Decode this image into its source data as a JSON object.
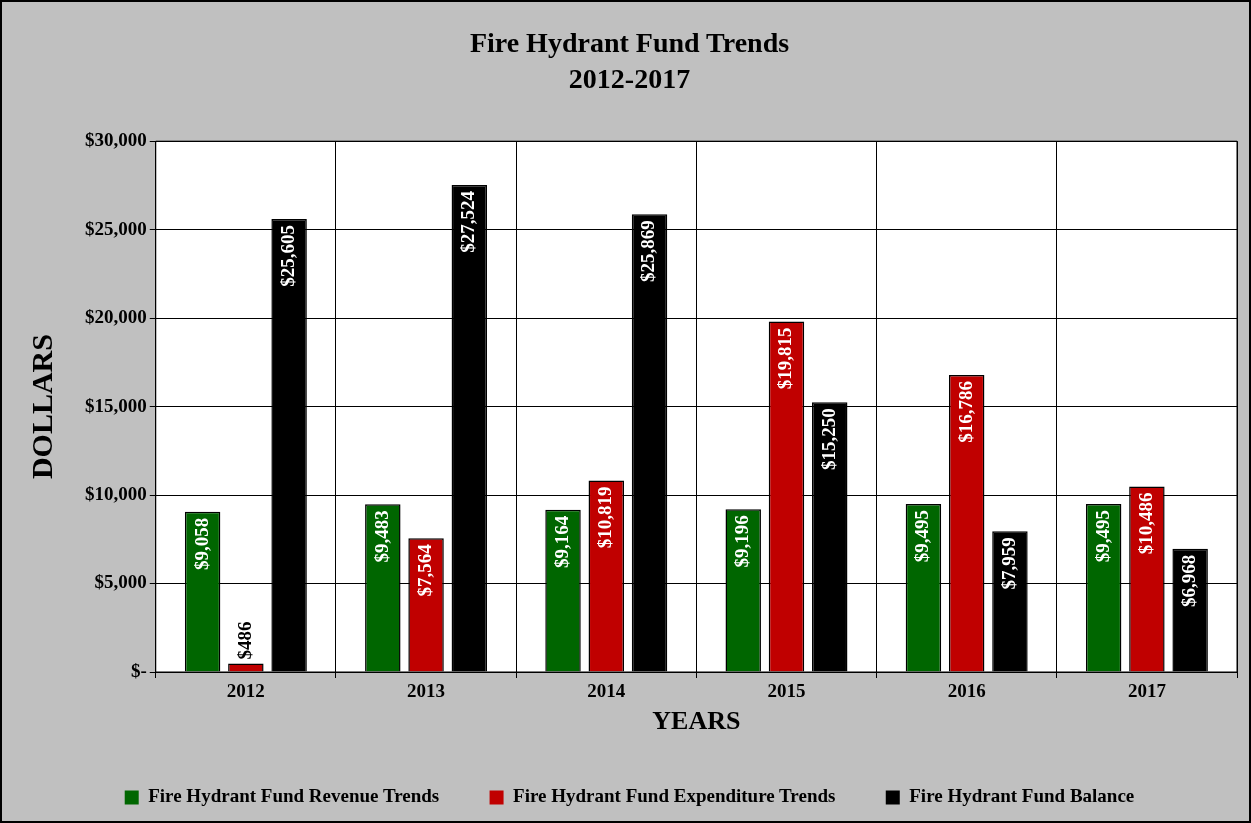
{
  "chart_data": {
    "type": "bar",
    "title": "Fire Hydrant Fund Trends",
    "subtitle": "2012-2017",
    "xlabel": "YEARS",
    "ylabel": "DOLLARS",
    "categories": [
      "2012",
      "2013",
      "2014",
      "2015",
      "2016",
      "2017"
    ],
    "series": [
      {
        "name": "Fire Hydrant Fund Revenue Trends",
        "color": "#006600",
        "values": [
          9058,
          9483,
          9164,
          9196,
          9495,
          9495
        ],
        "value_labels": [
          "$9,058",
          "$9,483",
          "$9,164",
          "$9,196",
          "$9,495",
          "$9,495"
        ]
      },
      {
        "name": "Fire Hydrant Fund Expenditure Trends",
        "color": "#c00000",
        "values": [
          486,
          7564,
          10819,
          19815,
          16786,
          10486
        ],
        "value_labels": [
          "$486",
          "$7,564",
          "$10,819",
          "$19,815",
          "$16,786",
          "$10,486"
        ]
      },
      {
        "name": "Fire Hydrant Fund Balance",
        "color": "#000000",
        "values": [
          25605,
          27524,
          25869,
          15250,
          7959,
          6968
        ],
        "value_labels": [
          "$25,605",
          "$27,524",
          "$25,869",
          "$15,250",
          "$7,959",
          "$6,968"
        ]
      }
    ],
    "ylim": [
      0,
      30000
    ],
    "yticks": [
      {
        "value": 0,
        "label": "$-"
      },
      {
        "value": 5000,
        "label": "$5,000"
      },
      {
        "value": 10000,
        "label": "$10,000"
      },
      {
        "value": 15000,
        "label": "$15,000"
      },
      {
        "value": 20000,
        "label": "$20,000"
      },
      {
        "value": 25000,
        "label": "$25,000"
      },
      {
        "value": 30000,
        "label": "$30,000"
      }
    ],
    "grid": true,
    "legend": "bottom"
  }
}
